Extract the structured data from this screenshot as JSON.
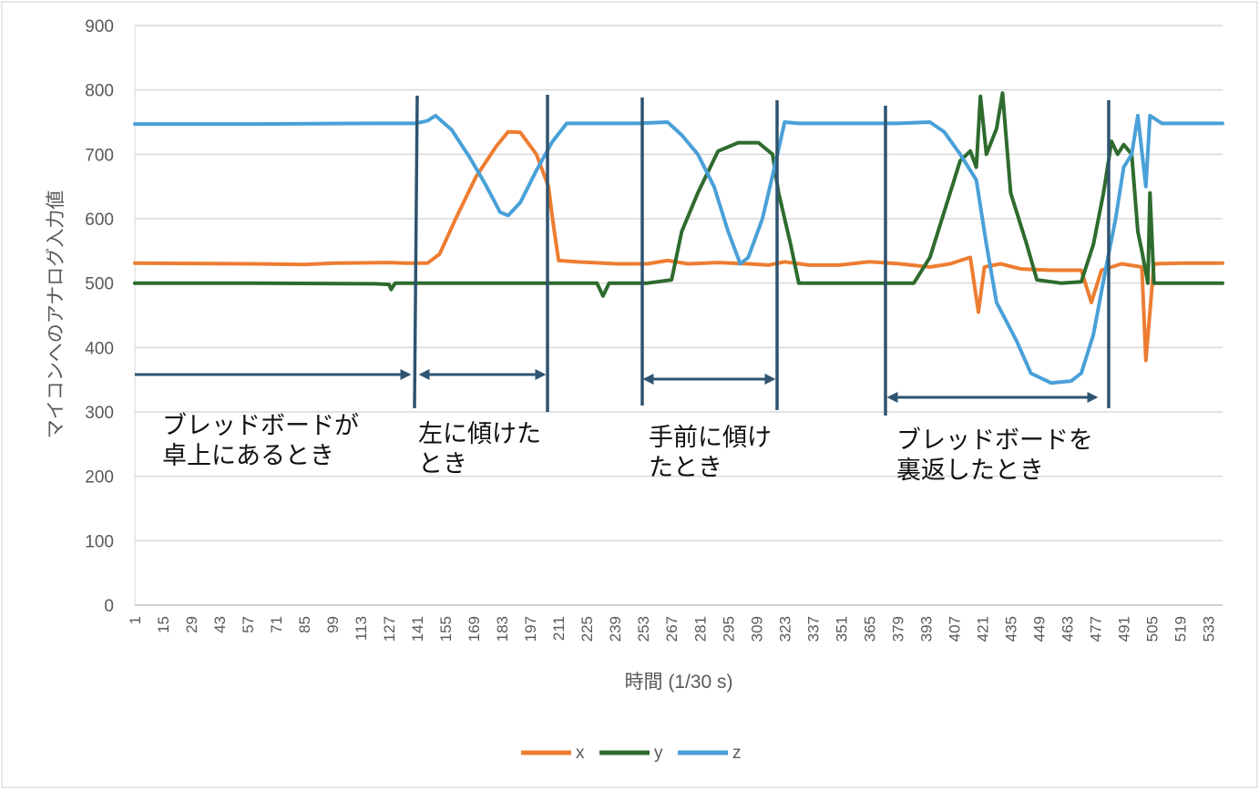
{
  "chart_data": {
    "type": "line",
    "title": "",
    "xlabel": "時間 (1/30 s)",
    "ylabel": "マイコンへのアナログ入力値",
    "xlim": [
      1,
      540
    ],
    "ylim": [
      0,
      900
    ],
    "y_ticks": [
      "0",
      "100",
      "200",
      "300",
      "400",
      "500",
      "600",
      "700",
      "800",
      "900"
    ],
    "x_ticks": [
      "1",
      "15",
      "29",
      "43",
      "57",
      "71",
      "85",
      "99",
      "113",
      "127",
      "141",
      "155",
      "169",
      "183",
      "197",
      "211",
      "225",
      "239",
      "253",
      "267",
      "281",
      "295",
      "309",
      "323",
      "337",
      "351",
      "365",
      "379",
      "393",
      "407",
      "421",
      "435",
      "449",
      "463",
      "477",
      "491",
      "505",
      "519",
      "533"
    ],
    "grid": true,
    "legend": "bottom",
    "series": [
      {
        "name": "x",
        "color": "#ED7D31",
        "points": [
          [
            1,
            531
          ],
          [
            60,
            530
          ],
          [
            85,
            529
          ],
          [
            100,
            531
          ],
          [
            127,
            532
          ],
          [
            135,
            531
          ],
          [
            146,
            531
          ],
          [
            152,
            545
          ],
          [
            160,
            600
          ],
          [
            170,
            665
          ],
          [
            180,
            712
          ],
          [
            186,
            735
          ],
          [
            192,
            734
          ],
          [
            200,
            700
          ],
          [
            206,
            650
          ],
          [
            208,
            600
          ],
          [
            211,
            535
          ],
          [
            220,
            533
          ],
          [
            240,
            530
          ],
          [
            255,
            530
          ],
          [
            265,
            535
          ],
          [
            275,
            530
          ],
          [
            290,
            532
          ],
          [
            305,
            530
          ],
          [
            315,
            528
          ],
          [
            323,
            533
          ],
          [
            335,
            528
          ],
          [
            350,
            528
          ],
          [
            365,
            533
          ],
          [
            380,
            530
          ],
          [
            395,
            525
          ],
          [
            405,
            530
          ],
          [
            415,
            540
          ],
          [
            419,
            455
          ],
          [
            422,
            525
          ],
          [
            430,
            530
          ],
          [
            440,
            522
          ],
          [
            455,
            520
          ],
          [
            470,
            520
          ],
          [
            475,
            470
          ],
          [
            480,
            520
          ],
          [
            490,
            530
          ],
          [
            500,
            525
          ],
          [
            502,
            380
          ],
          [
            506,
            530
          ],
          [
            520,
            531
          ],
          [
            540,
            531
          ]
        ]
      },
      {
        "name": "y",
        "color": "#2E6B2E",
        "points": [
          [
            1,
            500
          ],
          [
            60,
            500
          ],
          [
            120,
            499
          ],
          [
            127,
            498
          ],
          [
            128,
            490
          ],
          [
            130,
            500
          ],
          [
            175,
            500
          ],
          [
            200,
            500
          ],
          [
            230,
            500
          ],
          [
            233,
            480
          ],
          [
            236,
            500
          ],
          [
            255,
            500
          ],
          [
            267,
            505
          ],
          [
            272,
            580
          ],
          [
            280,
            640
          ],
          [
            290,
            705
          ],
          [
            300,
            718
          ],
          [
            310,
            718
          ],
          [
            317,
            700
          ],
          [
            320,
            640
          ],
          [
            326,
            560
          ],
          [
            330,
            500
          ],
          [
            340,
            500
          ],
          [
            360,
            500
          ],
          [
            379,
            500
          ],
          [
            387,
            500
          ],
          [
            395,
            540
          ],
          [
            403,
            620
          ],
          [
            410,
            690
          ],
          [
            415,
            705
          ],
          [
            418,
            680
          ],
          [
            420,
            790
          ],
          [
            423,
            700
          ],
          [
            428,
            740
          ],
          [
            431,
            795
          ],
          [
            435,
            640
          ],
          [
            443,
            560
          ],
          [
            448,
            505
          ],
          [
            460,
            500
          ],
          [
            470,
            502
          ],
          [
            476,
            560
          ],
          [
            481,
            640
          ],
          [
            485,
            720
          ],
          [
            488,
            700
          ],
          [
            491,
            715
          ],
          [
            495,
            700
          ],
          [
            498,
            580
          ],
          [
            500,
            550
          ],
          [
            503,
            500
          ],
          [
            504,
            640
          ],
          [
            506,
            500
          ],
          [
            515,
            500
          ],
          [
            540,
            500
          ]
        ]
      },
      {
        "name": "z",
        "color": "#4AA0D8",
        "points": [
          [
            1,
            747
          ],
          [
            60,
            747
          ],
          [
            120,
            748
          ],
          [
            140,
            748
          ],
          [
            146,
            752
          ],
          [
            150,
            760
          ],
          [
            158,
            738
          ],
          [
            167,
            695
          ],
          [
            175,
            652
          ],
          [
            182,
            610
          ],
          [
            186,
            605
          ],
          [
            192,
            625
          ],
          [
            200,
            675
          ],
          [
            208,
            720
          ],
          [
            215,
            748
          ],
          [
            230,
            748
          ],
          [
            250,
            748
          ],
          [
            265,
            750
          ],
          [
            272,
            730
          ],
          [
            280,
            700
          ],
          [
            288,
            650
          ],
          [
            295,
            580
          ],
          [
            301,
            530
          ],
          [
            305,
            540
          ],
          [
            312,
            600
          ],
          [
            318,
            680
          ],
          [
            323,
            750
          ],
          [
            330,
            748
          ],
          [
            350,
            748
          ],
          [
            379,
            748
          ],
          [
            395,
            750
          ],
          [
            402,
            735
          ],
          [
            410,
            700
          ],
          [
            418,
            660
          ],
          [
            423,
            560
          ],
          [
            428,
            470
          ],
          [
            438,
            410
          ],
          [
            445,
            360
          ],
          [
            455,
            345
          ],
          [
            465,
            348
          ],
          [
            470,
            360
          ],
          [
            476,
            420
          ],
          [
            482,
            520
          ],
          [
            487,
            600
          ],
          [
            491,
            680
          ],
          [
            495,
            700
          ],
          [
            498,
            760
          ],
          [
            502,
            650
          ],
          [
            504,
            760
          ],
          [
            510,
            748
          ],
          [
            540,
            748
          ]
        ]
      }
    ]
  },
  "annotations": [
    {
      "label": "ブレッドボードが\n卓上にあるとき"
    },
    {
      "label": "左に傾けた\nとき"
    },
    {
      "label": "手前に傾け\nたとき"
    },
    {
      "label": "ブレッドボードを\n裏返したとき"
    }
  ],
  "colors": {
    "marker_line": "#2E5470",
    "grid": "#D9D9D9",
    "axis_text": "#595959"
  }
}
